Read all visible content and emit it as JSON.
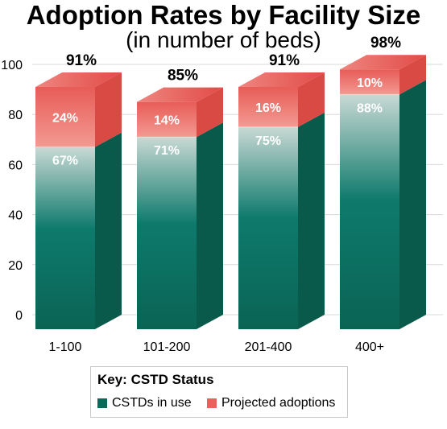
{
  "title": "Adoption Rates by Facility Size",
  "subtitle": "(in number of beds)",
  "chart_data": {
    "type": "bar",
    "categories": [
      "1-100",
      "101-200",
      "201-400",
      "400+"
    ],
    "series": [
      {
        "name": "CSTDs in use",
        "values": [
          67,
          71,
          75,
          88
        ],
        "labels": [
          "67%",
          "71%",
          "75%",
          "88%"
        ],
        "color": "#0a6a5a"
      },
      {
        "name": "Projected adoptions",
        "values": [
          24,
          14,
          16,
          10
        ],
        "labels": [
          "24%",
          "14%",
          "16%",
          "10%"
        ],
        "color": "#e8615b"
      }
    ],
    "totals": [
      91,
      85,
      91,
      98
    ],
    "total_labels": [
      "91%",
      "85%",
      "91%",
      "98%"
    ],
    "yticks": [
      "0",
      "20",
      "40",
      "60",
      "80",
      "100"
    ],
    "ylim": [
      0,
      100
    ],
    "stacked": true,
    "grid": true,
    "legend_position": "bottom"
  },
  "legend": {
    "title": "Key: CSTD Status",
    "items": [
      "CSTDs in use",
      "Projected adoptions"
    ]
  }
}
